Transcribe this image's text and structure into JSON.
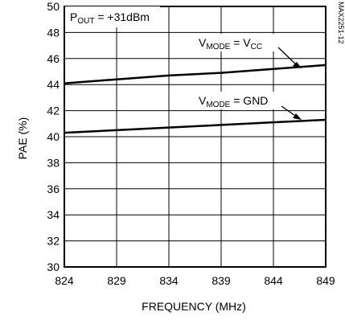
{
  "chart_data": {
    "type": "line",
    "xlabel": "FREQUENCY (MHz)",
    "ylabel": "PAE (%)",
    "xlim": [
      824,
      849
    ],
    "ylim": [
      30,
      50
    ],
    "xticks": [
      824,
      829,
      834,
      839,
      844,
      849
    ],
    "yticks": [
      30,
      32,
      34,
      36,
      38,
      40,
      42,
      44,
      46,
      48,
      50
    ],
    "grid": true,
    "x": [
      824,
      829,
      834,
      839,
      844,
      849
    ],
    "series": [
      {
        "values": [
          44.1,
          44.4,
          44.7,
          44.9,
          45.2,
          45.5
        ]
      },
      {
        "values": [
          40.3,
          40.5,
          40.7,
          40.9,
          41.1,
          41.3
        ]
      }
    ],
    "annotations": {
      "pout": {
        "main": "P",
        "sub": "OUT",
        "rest": " = +31dBm"
      },
      "vcc": {
        "main1": "V",
        "sub1": "MODE",
        "mid": " = V",
        "sub2": "CC"
      },
      "gnd": {
        "main1": "V",
        "sub1": "MODE",
        "rest": " = GND"
      }
    },
    "figure_id": "MAX2251-12"
  }
}
